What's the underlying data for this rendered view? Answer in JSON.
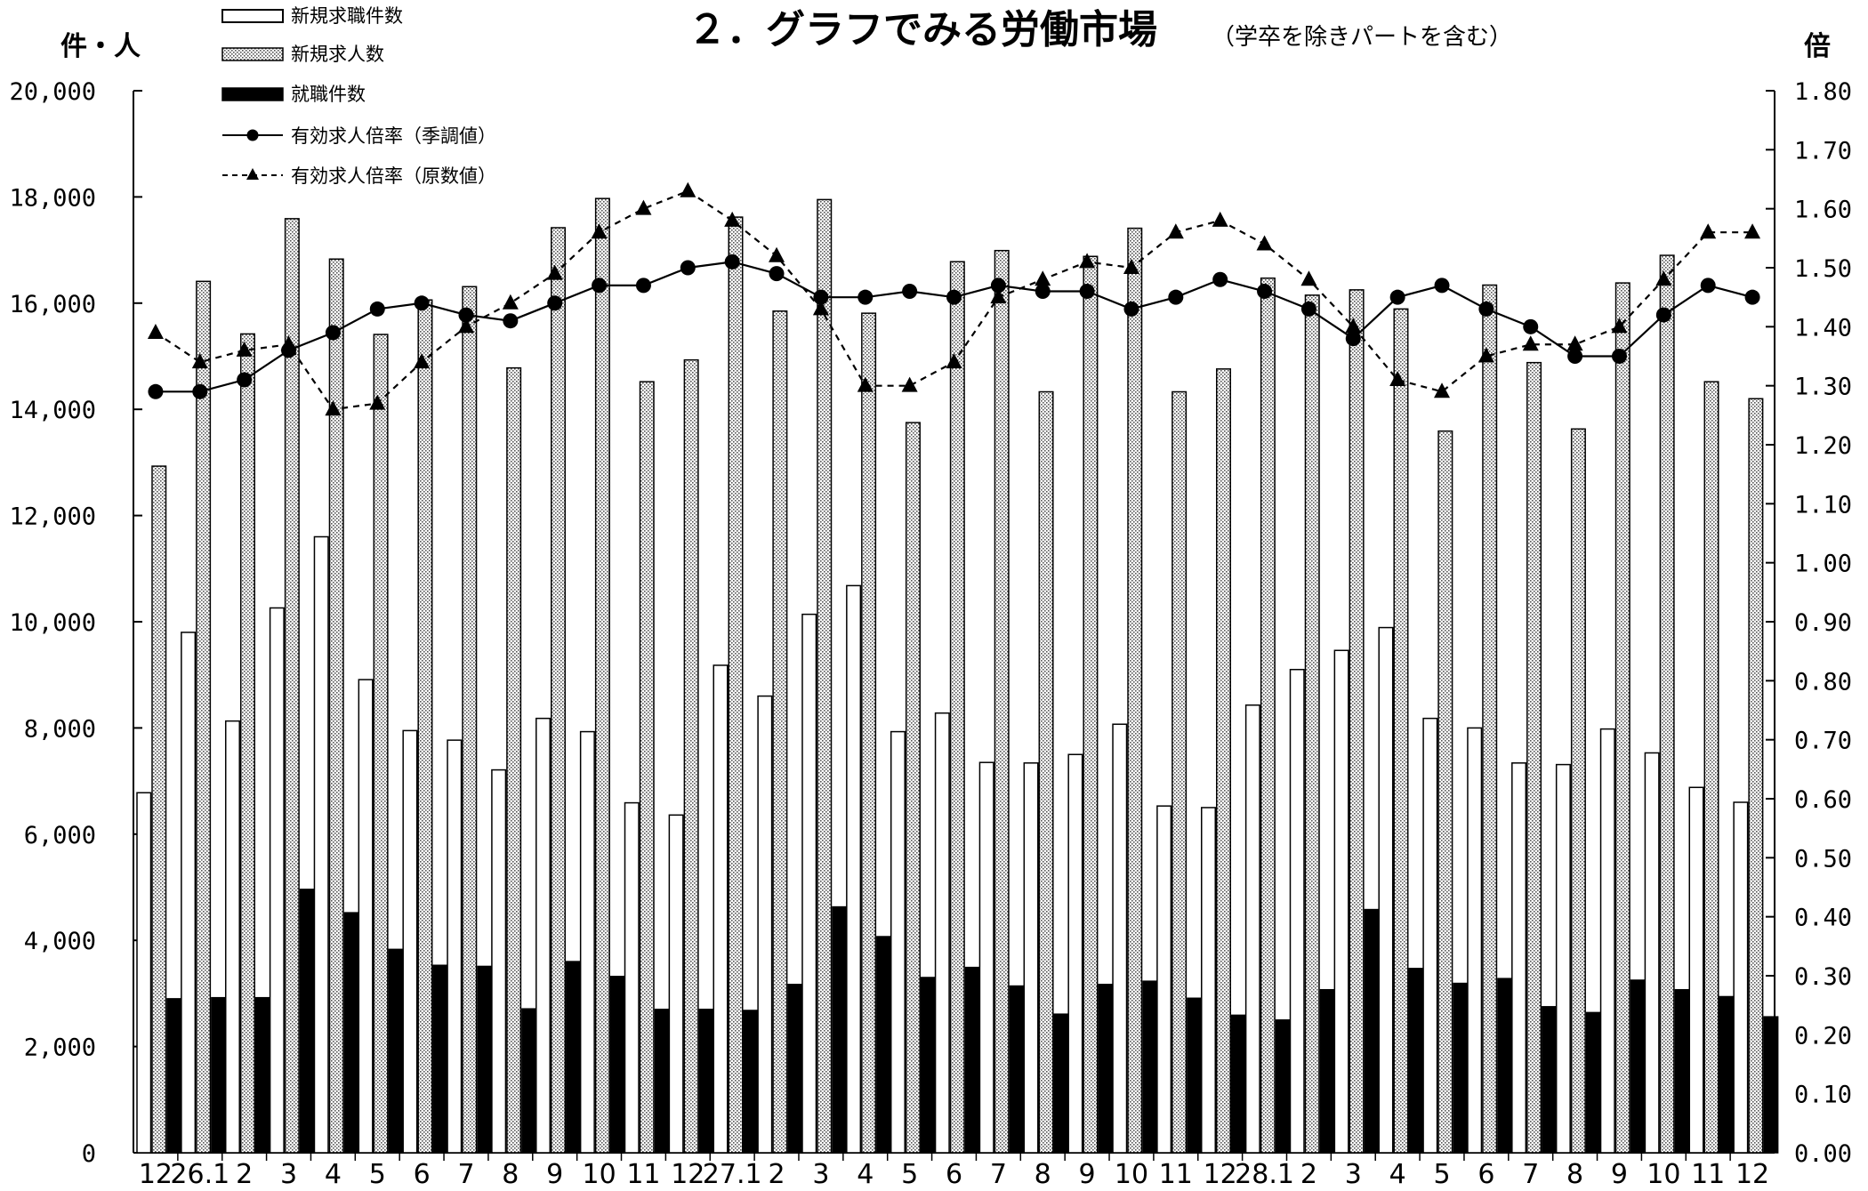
{
  "chart_data": {
    "type": "bar",
    "title": "２．グラフでみる労働市場",
    "subtitle": "（学卒を除きパートを含む）",
    "left_unit": "件・人",
    "right_unit": "倍",
    "categories": [
      "12",
      "26.1",
      "2",
      "3",
      "4",
      "5",
      "6",
      "7",
      "8",
      "9",
      "10",
      "11",
      "12",
      "27.1",
      "2",
      "3",
      "4",
      "5",
      "6",
      "7",
      "8",
      "9",
      "10",
      "11",
      "12",
      "28.1",
      "2",
      "3",
      "4",
      "5",
      "6",
      "7",
      "8",
      "9",
      "10",
      "11",
      "12"
    ],
    "ylim": [
      0,
      20000
    ],
    "y2lim": [
      0.0,
      1.8
    ],
    "yticks": [
      "0",
      "2,000",
      "4,000",
      "6,000",
      "8,000",
      "10,000",
      "12,000",
      "14,000",
      "16,000",
      "18,000",
      "20,000"
    ],
    "y2ticks": [
      "0.00",
      "0.10",
      "0.20",
      "0.30",
      "0.40",
      "0.50",
      "0.60",
      "0.70",
      "0.80",
      "0.90",
      "1.00",
      "1.10",
      "1.20",
      "1.30",
      "1.40",
      "1.50",
      "1.60",
      "1.70",
      "1.80"
    ],
    "legend_position": "top-left",
    "series": [
      {
        "name": "新規求職件数",
        "kind": "bar",
        "fill": "#ffffff",
        "values": [
          6780,
          9800,
          8130,
          10260,
          11600,
          8910,
          7950,
          7770,
          7210,
          8180,
          7930,
          6590,
          6360,
          9180,
          8600,
          10140,
          10680,
          7930,
          8280,
          7350,
          7340,
          7500,
          8070,
          6530,
          6500,
          8430,
          9100,
          9460,
          9890,
          8180,
          8000,
          7340,
          7310,
          7980,
          7530,
          6880,
          6600
        ]
      },
      {
        "name": "新規求人数",
        "kind": "bar",
        "fill": "dotted",
        "values": [
          12930,
          16410,
          15420,
          17590,
          16830,
          15410,
          16060,
          16310,
          14780,
          17420,
          17970,
          14520,
          14930,
          17620,
          15850,
          17950,
          15810,
          13750,
          16780,
          16990,
          14330,
          16880,
          17410,
          14330,
          14760,
          16470,
          16150,
          16250,
          15890,
          13590,
          16340,
          14880,
          13630,
          16380,
          16900,
          14520,
          14200
        ]
      },
      {
        "name": "就職件数",
        "kind": "bar",
        "fill": "#000000",
        "values": [
          2900,
          2920,
          2920,
          4960,
          4520,
          3830,
          3530,
          3510,
          2710,
          3600,
          3320,
          2700,
          2700,
          2680,
          3170,
          4630,
          4070,
          3300,
          3490,
          3140,
          2610,
          3170,
          3230,
          2910,
          2590,
          2500,
          3070,
          4580,
          3470,
          3190,
          3280,
          2750,
          2640,
          3250,
          3070,
          2940,
          2560
        ]
      },
      {
        "name": "有効求人倍率（季調値）",
        "kind": "line",
        "marker": "circle",
        "axis": "right",
        "values": [
          1.29,
          1.29,
          1.31,
          1.36,
          1.39,
          1.43,
          1.44,
          1.42,
          1.41,
          1.44,
          1.47,
          1.47,
          1.5,
          1.51,
          1.49,
          1.45,
          1.45,
          1.46,
          1.45,
          1.47,
          1.46,
          1.46,
          1.43,
          1.45,
          1.48,
          1.46,
          1.43,
          1.38,
          1.45,
          1.47,
          1.43,
          1.4,
          1.35,
          1.35,
          1.42,
          1.47,
          1.45
        ]
      },
      {
        "name": "有効求人倍率（原数値）",
        "kind": "line",
        "marker": "triangle",
        "dash": true,
        "axis": "right",
        "values": [
          1.39,
          1.34,
          1.36,
          1.37,
          1.26,
          1.27,
          1.34,
          1.4,
          1.44,
          1.49,
          1.56,
          1.6,
          1.63,
          1.58,
          1.52,
          1.43,
          1.3,
          1.3,
          1.34,
          1.45,
          1.48,
          1.51,
          1.5,
          1.56,
          1.58,
          1.54,
          1.48,
          1.4,
          1.31,
          1.29,
          1.35,
          1.37,
          1.37,
          1.4,
          1.48,
          1.56,
          1.56
        ]
      }
    ]
  }
}
